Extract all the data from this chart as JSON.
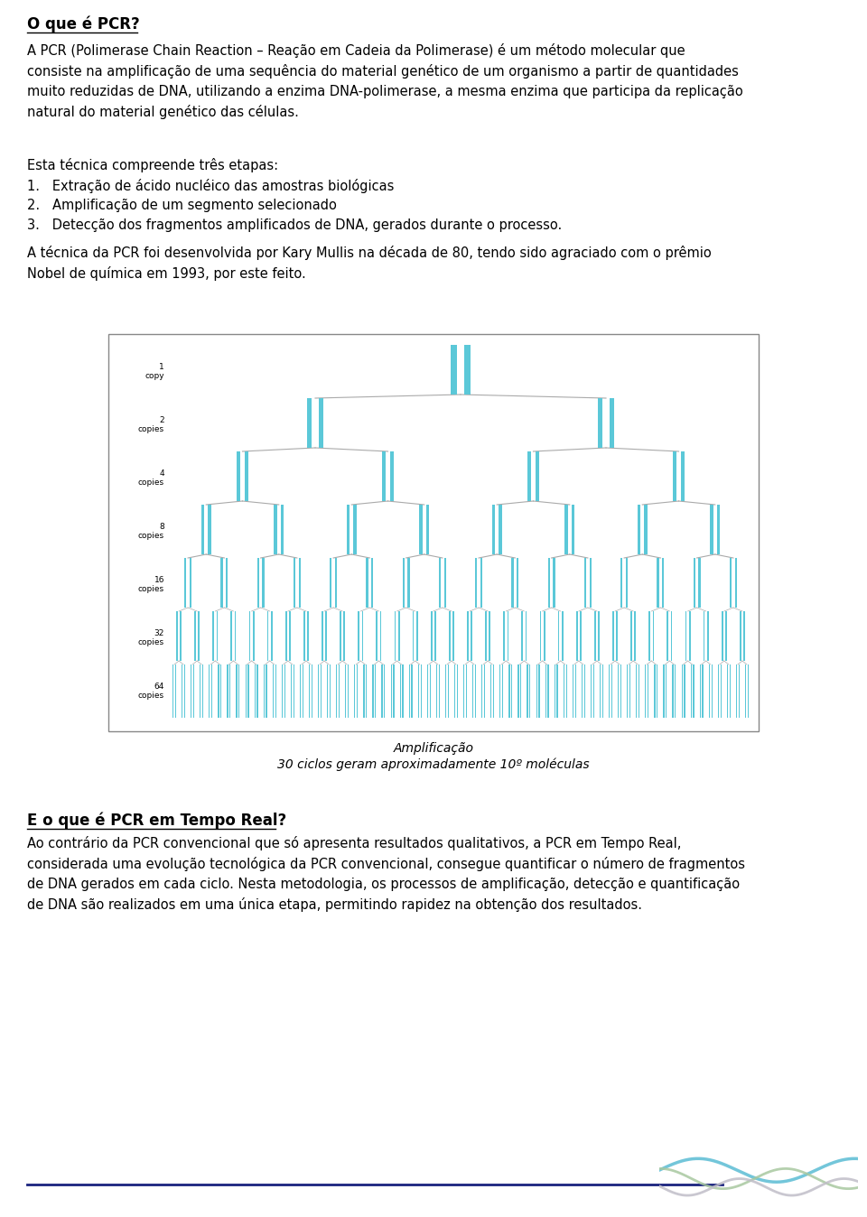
{
  "bg_color": "#ffffff",
  "title1": "O que é PCR?",
  "para1": "A PCR (Polimerase Chain Reaction – Reação em Cadeia da Polimerase) é um método molecular que\nconsiste na amplificação de uma sequência do material genético de um organismo a partir de quantidades\nmuito reduzidas de DNA, utilizando a enzima DNA-polimerase, a mesma enzima que participa da replicação\nnatural do material genético das células.",
  "para2": "Esta técnica compreende três etapas:",
  "list_item1": "1.   Extração de ácido nucléico das amostras biológicas",
  "list_item2": "2.   Amplificação de um segmento selecionado",
  "list_item3": "3.   Detecção dos fragmentos amplificados de DNA, gerados durante o processo.",
  "para3": "A técnica da PCR foi desenvolvida por Kary Mullis na década de 80, tendo sido agraciado com o prêmio\nNobel de química em 1993, por este feito.",
  "fig_caption1": "Amplificação",
  "fig_caption2": "30 ciclos geram aproximadamente 10º moléculas",
  "title2": "E o que é PCR em Tempo Real?",
  "para4": "Ao contrário da PCR convencional que só apresenta resultados qualitativos, a PCR em Tempo Real,\nconsiderada uma evolução tecnológica da PCR convencional, consegue quantificar o número de fragmentos\nde DNA gerados em cada ciclo. Nesta metodologia, os processos de amplificação, detecção e quantificação\nde DNA são realizados em uma única etapa, permitindo rapidez na obtenção dos resultados.",
  "tree_color": "#5bc8d8",
  "tree_line_color": "#aaaaaa",
  "footer_line_color": "#1a237e",
  "level_labels": [
    "1\ncopy",
    "2\ncopies",
    "4\ncopies",
    "8\ncopies",
    "16\ncopies",
    "32\ncopies",
    "64\ncopies"
  ],
  "wave_colors": [
    "#5bbcd4",
    "#a8c8a0",
    "#c0bec8"
  ]
}
